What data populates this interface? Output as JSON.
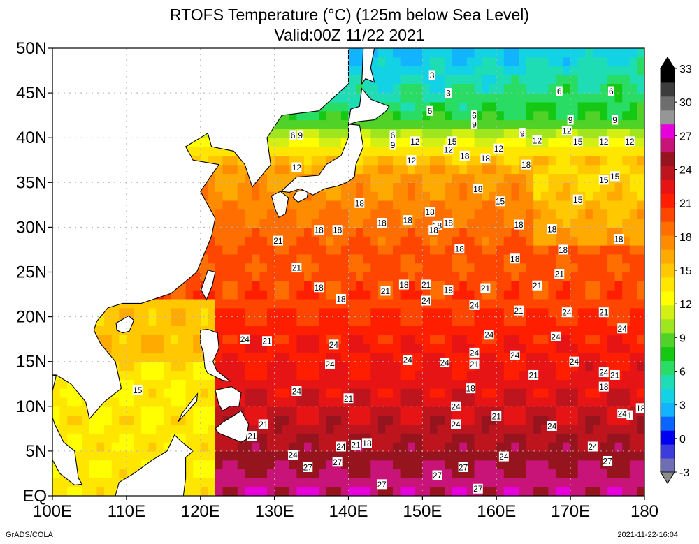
{
  "title": "RTOFS Temperature (°C) (125m below Sea Level)",
  "subtitle": "Valid:00Z 11/22 2021",
  "footer_left": "GrADS/COLA",
  "footer_right": "2021-11-22-16:04",
  "chart_data": {
    "type": "heatmap",
    "title": "RTOFS Temperature (°C) (125m below Sea Level)",
    "subtitle": "Valid:00Z 11/22 2021",
    "xlim": [
      100,
      180
    ],
    "ylim": [
      0,
      50
    ],
    "x_ticks": [
      100,
      110,
      120,
      130,
      140,
      150,
      160,
      170,
      180
    ],
    "x_tick_labels": [
      "100E",
      "110E",
      "120E",
      "130E",
      "140E",
      "150E",
      "160E",
      "170E",
      "180"
    ],
    "y_ticks": [
      0,
      5,
      10,
      15,
      20,
      25,
      30,
      35,
      40,
      45,
      50
    ],
    "y_tick_labels": [
      "EQ",
      "5N",
      "10N",
      "15N",
      "20N",
      "25N",
      "30N",
      "35N",
      "40N",
      "45N",
      "50N"
    ],
    "grid": true,
    "colorbar": {
      "position": "right",
      "levels": [
        -3,
        0,
        3,
        6,
        9,
        12,
        15,
        18,
        21,
        24,
        27,
        30,
        33
      ],
      "level_labels": [
        "-3",
        "0",
        "3",
        "6",
        "9",
        "12",
        "15",
        "18",
        "21",
        "24",
        "27",
        "30",
        "33"
      ],
      "colors": [
        "#6e6eb4",
        "#3c3cdc",
        "#0000f0",
        "#0a64ff",
        "#12b4ff",
        "#14d2e6",
        "#1edcb4",
        "#28dc64",
        "#14c814",
        "#50d228",
        "#a0e61e",
        "#d2f014",
        "#ffff00",
        "#ffe600",
        "#ffc800",
        "#ffaa00",
        "#ff8c00",
        "#ff6e00",
        "#ff4600",
        "#ff1e00",
        "#e61414",
        "#be141e",
        "#96141e",
        "#c81478",
        "#e600dc",
        "#969696",
        "#6e6e6e",
        "#3c3c3c",
        "#000000"
      ]
    },
    "contour_labels": [
      {
        "lon": 151.3,
        "lat": 47.0,
        "value": 3
      },
      {
        "lon": 153.5,
        "lat": 45.0,
        "value": 3
      },
      {
        "lon": 175.5,
        "lat": 45.2,
        "value": 6
      },
      {
        "lon": 168.5,
        "lat": 45.2,
        "value": 6
      },
      {
        "lon": 157.0,
        "lat": 42.5,
        "value": 6
      },
      {
        "lon": 151.0,
        "lat": 43.0,
        "value": 6
      },
      {
        "lon": 176.0,
        "lat": 42.0,
        "value": 9
      },
      {
        "lon": 170.0,
        "lat": 42.0,
        "value": 9
      },
      {
        "lon": 163.5,
        "lat": 40.5,
        "value": 9
      },
      {
        "lon": 157.0,
        "lat": 41.5,
        "value": 9
      },
      {
        "lon": 133.5,
        "lat": 40.3,
        "value": 9
      },
      {
        "lon": 132.5,
        "lat": 40.3,
        "value": 6
      },
      {
        "lon": 146.0,
        "lat": 39.2,
        "value": 9
      },
      {
        "lon": 146.0,
        "lat": 40.3,
        "value": 6
      },
      {
        "lon": 149.0,
        "lat": 39.6,
        "value": 12
      },
      {
        "lon": 154.0,
        "lat": 39.6,
        "value": 15
      },
      {
        "lon": 153.5,
        "lat": 38.7,
        "value": 12
      },
      {
        "lon": 155.7,
        "lat": 38.0,
        "value": 18
      },
      {
        "lon": 158.5,
        "lat": 37.7,
        "value": 18
      },
      {
        "lon": 160.3,
        "lat": 38.8,
        "value": 12
      },
      {
        "lon": 165.5,
        "lat": 39.7,
        "value": 12
      },
      {
        "lon": 169.5,
        "lat": 40.8,
        "value": 12
      },
      {
        "lon": 171.0,
        "lat": 39.6,
        "value": 15
      },
      {
        "lon": 174.5,
        "lat": 39.6,
        "value": 12
      },
      {
        "lon": 178.0,
        "lat": 39.6,
        "value": 12
      },
      {
        "lon": 148.5,
        "lat": 37.5,
        "value": 12
      },
      {
        "lon": 133.0,
        "lat": 36.7,
        "value": 12
      },
      {
        "lon": 164.0,
        "lat": 37.0,
        "value": 18
      },
      {
        "lon": 157.5,
        "lat": 34.3,
        "value": 18
      },
      {
        "lon": 176.0,
        "lat": 35.7,
        "value": 15
      },
      {
        "lon": 174.5,
        "lat": 35.3,
        "value": 15
      },
      {
        "lon": 160.5,
        "lat": 32.9,
        "value": 15
      },
      {
        "lon": 171.0,
        "lat": 33.1,
        "value": 15
      },
      {
        "lon": 141.5,
        "lat": 32.7,
        "value": 18
      },
      {
        "lon": 148.0,
        "lat": 30.8,
        "value": 18
      },
      {
        "lon": 151.0,
        "lat": 31.7,
        "value": 18
      },
      {
        "lon": 152.0,
        "lat": 30.2,
        "value": 18
      },
      {
        "lon": 153.5,
        "lat": 30.5,
        "value": 18
      },
      {
        "lon": 151.5,
        "lat": 29.7,
        "value": 18
      },
      {
        "lon": 144.5,
        "lat": 30.5,
        "value": 18
      },
      {
        "lon": 136.0,
        "lat": 29.7,
        "value": 18
      },
      {
        "lon": 138.5,
        "lat": 29.7,
        "value": 18
      },
      {
        "lon": 163.0,
        "lat": 30.3,
        "value": 18
      },
      {
        "lon": 167.5,
        "lat": 29.8,
        "value": 18
      },
      {
        "lon": 176.5,
        "lat": 28.7,
        "value": 18
      },
      {
        "lon": 130.5,
        "lat": 28.5,
        "value": 21
      },
      {
        "lon": 155.0,
        "lat": 27.6,
        "value": 18
      },
      {
        "lon": 169.0,
        "lat": 27.5,
        "value": 18
      },
      {
        "lon": 162.5,
        "lat": 26.5,
        "value": 18
      },
      {
        "lon": 133.0,
        "lat": 25.5,
        "value": 21
      },
      {
        "lon": 168.5,
        "lat": 24.8,
        "value": 21
      },
      {
        "lon": 136.0,
        "lat": 23.3,
        "value": 18
      },
      {
        "lon": 147.5,
        "lat": 23.6,
        "value": 18
      },
      {
        "lon": 150.5,
        "lat": 23.6,
        "value": 21
      },
      {
        "lon": 145.0,
        "lat": 22.9,
        "value": 21
      },
      {
        "lon": 153.5,
        "lat": 23.0,
        "value": 18
      },
      {
        "lon": 158.5,
        "lat": 23.2,
        "value": 21
      },
      {
        "lon": 165.5,
        "lat": 23.5,
        "value": 21
      },
      {
        "lon": 139.0,
        "lat": 22.0,
        "value": 18
      },
      {
        "lon": 150.5,
        "lat": 21.8,
        "value": 24
      },
      {
        "lon": 157.0,
        "lat": 21.3,
        "value": 24
      },
      {
        "lon": 163.0,
        "lat": 20.7,
        "value": 21
      },
      {
        "lon": 169.5,
        "lat": 20.5,
        "value": 24
      },
      {
        "lon": 174.5,
        "lat": 20.5,
        "value": 21
      },
      {
        "lon": 177.0,
        "lat": 18.7,
        "value": 24
      },
      {
        "lon": 159.0,
        "lat": 18.0,
        "value": 24
      },
      {
        "lon": 168.0,
        "lat": 17.8,
        "value": 24
      },
      {
        "lon": 126.0,
        "lat": 17.5,
        "value": 24
      },
      {
        "lon": 129.0,
        "lat": 17.3,
        "value": 21
      },
      {
        "lon": 138.0,
        "lat": 16.9,
        "value": 24
      },
      {
        "lon": 157.0,
        "lat": 16.0,
        "value": 24
      },
      {
        "lon": 162.5,
        "lat": 15.7,
        "value": 24
      },
      {
        "lon": 137.5,
        "lat": 14.7,
        "value": 24
      },
      {
        "lon": 148.0,
        "lat": 15.2,
        "value": 24
      },
      {
        "lon": 153.0,
        "lat": 14.9,
        "value": 24
      },
      {
        "lon": 157.0,
        "lat": 14.7,
        "value": 21
      },
      {
        "lon": 170.5,
        "lat": 15.0,
        "value": 24
      },
      {
        "lon": 165.0,
        "lat": 13.5,
        "value": 21
      },
      {
        "lon": 174.5,
        "lat": 13.8,
        "value": 24
      },
      {
        "lon": 176.0,
        "lat": 13.5,
        "value": 21
      },
      {
        "lon": 174.5,
        "lat": 12.2,
        "value": 18
      },
      {
        "lon": 111.5,
        "lat": 11.8,
        "value": 15
      },
      {
        "lon": 133.0,
        "lat": 11.7,
        "value": 24
      },
      {
        "lon": 156.5,
        "lat": 12.0,
        "value": 18
      },
      {
        "lon": 140.0,
        "lat": 10.9,
        "value": 21
      },
      {
        "lon": 154.5,
        "lat": 10.0,
        "value": 24
      },
      {
        "lon": 179.5,
        "lat": 9.8,
        "value": 18
      },
      {
        "lon": 177.0,
        "lat": 9.2,
        "value": 24
      },
      {
        "lon": 178.0,
        "lat": 9.0,
        "value": 1
      },
      {
        "lon": 160.0,
        "lat": 8.9,
        "value": 21
      },
      {
        "lon": 128.5,
        "lat": 8.0,
        "value": 21
      },
      {
        "lon": 154.5,
        "lat": 8.0,
        "value": 24
      },
      {
        "lon": 167.5,
        "lat": 7.8,
        "value": 24
      },
      {
        "lon": 127.0,
        "lat": 6.7,
        "value": 21
      },
      {
        "lon": 142.5,
        "lat": 5.9,
        "value": 18
      },
      {
        "lon": 141.0,
        "lat": 5.7,
        "value": 21
      },
      {
        "lon": 139.0,
        "lat": 5.5,
        "value": 24
      },
      {
        "lon": 173.0,
        "lat": 5.5,
        "value": 24
      },
      {
        "lon": 132.5,
        "lat": 4.6,
        "value": 24
      },
      {
        "lon": 161.0,
        "lat": 4.4,
        "value": 24
      },
      {
        "lon": 175.0,
        "lat": 3.9,
        "value": 27
      },
      {
        "lon": 138.5,
        "lat": 3.8,
        "value": 27
      },
      {
        "lon": 134.5,
        "lat": 3.2,
        "value": 27
      },
      {
        "lon": 155.5,
        "lat": 3.2,
        "value": 27
      },
      {
        "lon": 152.0,
        "lat": 2.3,
        "value": 27
      },
      {
        "lon": 144.5,
        "lat": 1.3,
        "value": 27
      },
      {
        "lon": 157.5,
        "lat": 0.8,
        "value": 27
      }
    ]
  },
  "colors": {
    "land": "#ffffff",
    "coastline": "#000000",
    "grid": "#b4b4b4"
  }
}
